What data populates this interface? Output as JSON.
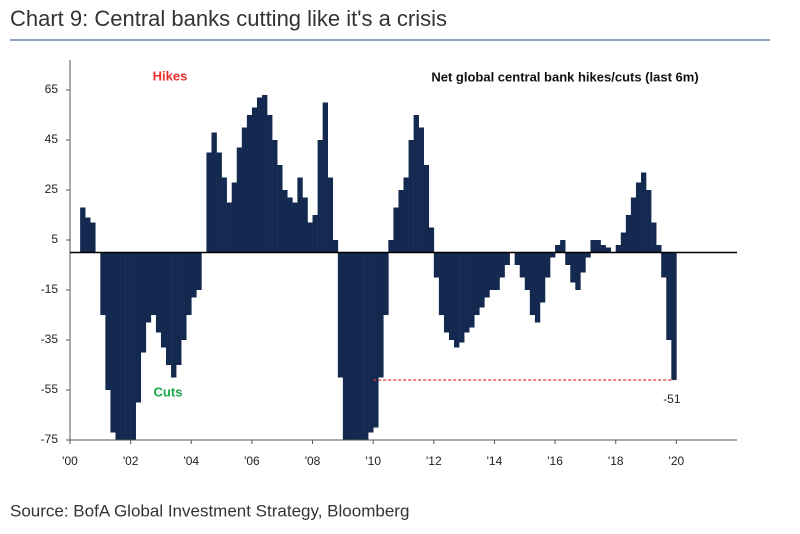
{
  "chart_data": {
    "type": "bar",
    "title": "Chart 9: Central banks cutting like it's a crisis",
    "subtitle": "Net global central bank hikes/cuts (last 6m)",
    "source": "Source: BofA Global Investment Strategy, Bloomberg",
    "annotations": {
      "hikes": "Hikes",
      "cuts": "Cuts"
    },
    "color": "#13294f",
    "xlim": [
      2000,
      2022
    ],
    "ylim": [
      -75,
      77
    ],
    "xticks": [
      {
        "value": 2000,
        "label": "'00"
      },
      {
        "value": 2002,
        "label": "'02"
      },
      {
        "value": 2004,
        "label": "'04"
      },
      {
        "value": 2006,
        "label": "'06"
      },
      {
        "value": 2008,
        "label": "'08"
      },
      {
        "value": 2010,
        "label": "'10"
      },
      {
        "value": 2012,
        "label": "'12"
      },
      {
        "value": 2014,
        "label": "'14"
      },
      {
        "value": 2016,
        "label": "'16"
      },
      {
        "value": 2018,
        "label": "'18"
      },
      {
        "value": 2020,
        "label": "'20"
      }
    ],
    "yticks": [
      65,
      45,
      25,
      5,
      -15,
      -35,
      -55,
      -75
    ],
    "reference_line": {
      "value": -51,
      "x": [
        2010.0,
        2019.917
      ],
      "color": "#e8302c"
    },
    "x": [
      2000.417,
      2000.583,
      2000.75,
      2000.917,
      2001.083,
      2001.25,
      2001.417,
      2001.583,
      2001.75,
      2001.917,
      2002.083,
      2002.25,
      2002.417,
      2002.583,
      2002.75,
      2002.917,
      2003.083,
      2003.25,
      2003.417,
      2003.583,
      2003.75,
      2003.917,
      2004.083,
      2004.25,
      2004.417,
      2004.583,
      2004.75,
      2004.917,
      2005.083,
      2005.25,
      2005.417,
      2005.583,
      2005.75,
      2005.917,
      2006.083,
      2006.25,
      2006.417,
      2006.583,
      2006.75,
      2006.917,
      2007.083,
      2007.25,
      2007.417,
      2007.583,
      2007.75,
      2007.917,
      2008.083,
      2008.25,
      2008.417,
      2008.583,
      2008.75,
      2008.917,
      2009.083,
      2009.25,
      2009.417,
      2009.583,
      2009.75,
      2009.917,
      2010.083,
      2010.25,
      2010.417,
      2010.583,
      2010.75,
      2010.917,
      2011.083,
      2011.25,
      2011.417,
      2011.583,
      2011.75,
      2011.917,
      2012.083,
      2012.25,
      2012.417,
      2012.583,
      2012.75,
      2012.917,
      2013.083,
      2013.25,
      2013.417,
      2013.583,
      2013.75,
      2013.917,
      2014.083,
      2014.25,
      2014.417,
      2014.583,
      2014.75,
      2014.917,
      2015.083,
      2015.25,
      2015.417,
      2015.583,
      2015.75,
      2015.917,
      2016.083,
      2016.25,
      2016.417,
      2016.583,
      2016.75,
      2016.917,
      2017.083,
      2017.25,
      2017.417,
      2017.583,
      2017.75,
      2017.917,
      2018.083,
      2018.25,
      2018.417,
      2018.583,
      2018.75,
      2018.917,
      2019.083,
      2019.25,
      2019.417,
      2019.583,
      2019.75,
      2019.917
    ],
    "values": [
      18,
      14,
      12,
      0,
      -25,
      -55,
      -72,
      -75,
      -75,
      -75,
      -75,
      -60,
      -40,
      -28,
      -25,
      -32,
      -38,
      -45,
      -50,
      -45,
      -35,
      -25,
      -18,
      -15,
      0,
      40,
      48,
      40,
      30,
      20,
      28,
      42,
      50,
      55,
      58,
      62,
      63,
      55,
      45,
      35,
      25,
      22,
      20,
      30,
      22,
      12,
      15,
      45,
      60,
      30,
      5,
      -50,
      -75,
      -75,
      -75,
      -75,
      -75,
      -72,
      -70,
      -50,
      -25,
      5,
      18,
      25,
      30,
      45,
      55,
      50,
      35,
      10,
      -10,
      -25,
      -32,
      -35,
      -38,
      -36,
      -32,
      -30,
      -25,
      -22,
      -18,
      -15,
      -15,
      -10,
      -5,
      0,
      -5,
      -10,
      -15,
      -25,
      -28,
      -20,
      -10,
      -2,
      3,
      5,
      -5,
      -12,
      -15,
      -8,
      -2,
      5,
      5,
      3,
      2,
      0,
      3,
      8,
      15,
      22,
      28,
      32,
      25,
      12,
      3,
      -10,
      -35,
      -51
    ]
  }
}
